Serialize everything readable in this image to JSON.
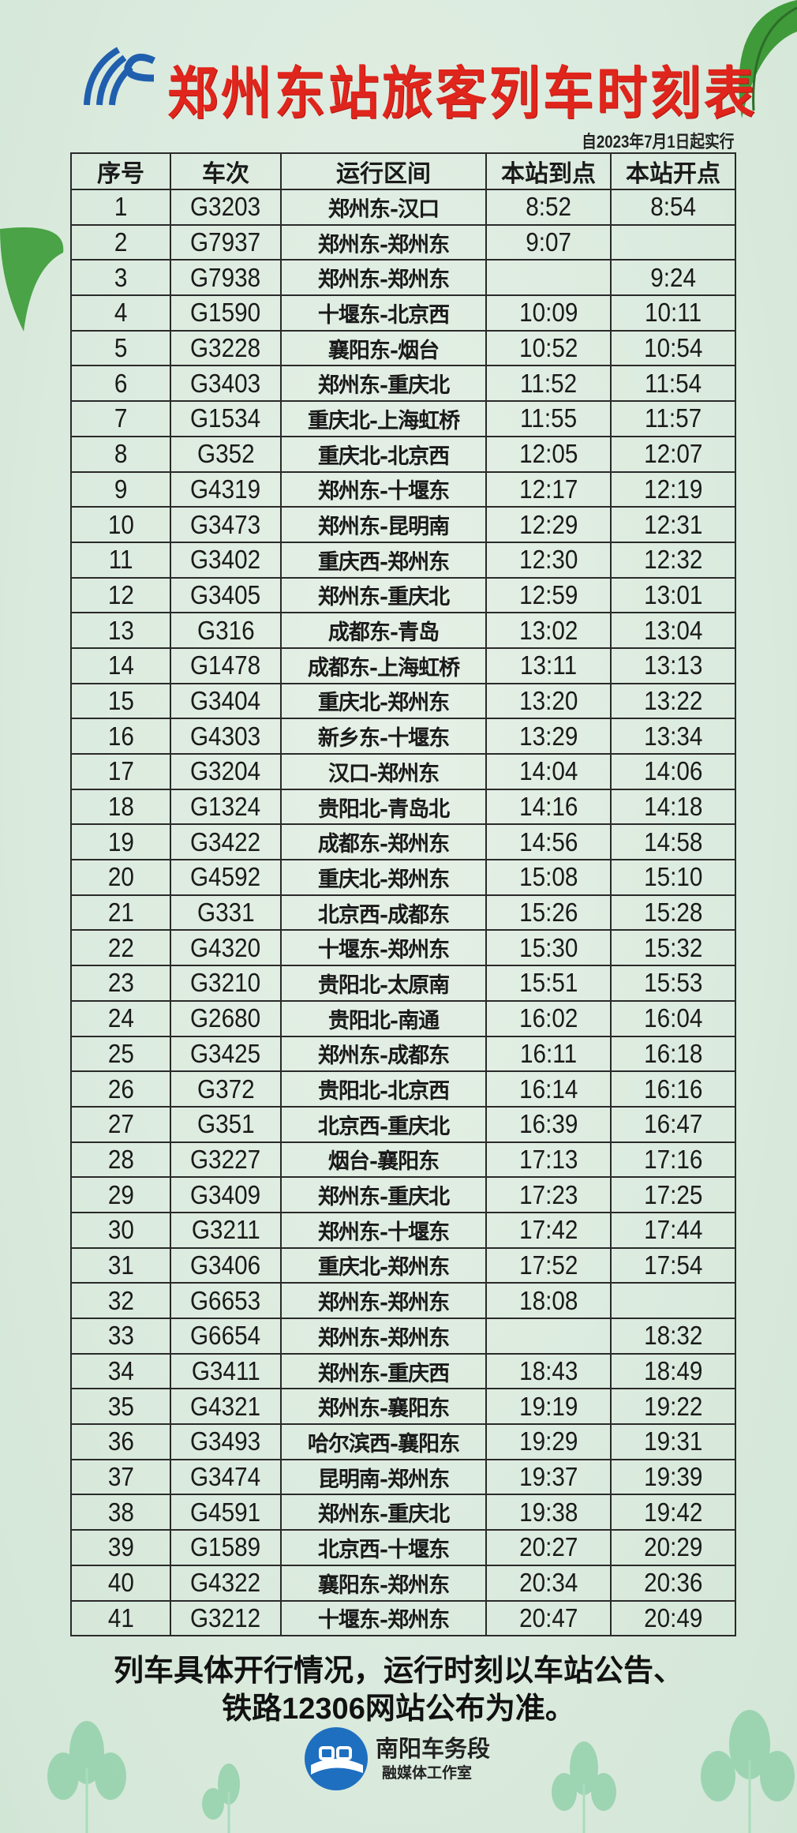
{
  "header": {
    "title": "郑州东站旅客列车时刻表",
    "subtitle": "自2023年7月1日起实行",
    "logo_icon": "china-railway-logo",
    "title_color": "#e0251c"
  },
  "table": {
    "columns": [
      "序号",
      "车次",
      "运行区间",
      "本站到点",
      "本站开点"
    ],
    "rows": [
      [
        "1",
        "G3203",
        "郑州东-汉口",
        "8:52",
        "8:54"
      ],
      [
        "2",
        "G7937",
        "郑州东-郑州东",
        "9:07",
        ""
      ],
      [
        "3",
        "G7938",
        "郑州东-郑州东",
        "",
        "9:24"
      ],
      [
        "4",
        "G1590",
        "十堰东-北京西",
        "10:09",
        "10:11"
      ],
      [
        "5",
        "G3228",
        "襄阳东-烟台",
        "10:52",
        "10:54"
      ],
      [
        "6",
        "G3403",
        "郑州东-重庆北",
        "11:52",
        "11:54"
      ],
      [
        "7",
        "G1534",
        "重庆北-上海虹桥",
        "11:55",
        "11:57"
      ],
      [
        "8",
        "G352",
        "重庆北-北京西",
        "12:05",
        "12:07"
      ],
      [
        "9",
        "G4319",
        "郑州东-十堰东",
        "12:17",
        "12:19"
      ],
      [
        "10",
        "G3473",
        "郑州东-昆明南",
        "12:29",
        "12:31"
      ],
      [
        "11",
        "G3402",
        "重庆西-郑州东",
        "12:30",
        "12:32"
      ],
      [
        "12",
        "G3405",
        "郑州东-重庆北",
        "12:59",
        "13:01"
      ],
      [
        "13",
        "G316",
        "成都东-青岛",
        "13:02",
        "13:04"
      ],
      [
        "14",
        "G1478",
        "成都东-上海虹桥",
        "13:11",
        "13:13"
      ],
      [
        "15",
        "G3404",
        "重庆北-郑州东",
        "13:20",
        "13:22"
      ],
      [
        "16",
        "G4303",
        "新乡东-十堰东",
        "13:29",
        "13:34"
      ],
      [
        "17",
        "G3204",
        "汉口-郑州东",
        "14:04",
        "14:06"
      ],
      [
        "18",
        "G1324",
        "贵阳北-青岛北",
        "14:16",
        "14:18"
      ],
      [
        "19",
        "G3422",
        "成都东-郑州东",
        "14:56",
        "14:58"
      ],
      [
        "20",
        "G4592",
        "重庆北-郑州东",
        "15:08",
        "15:10"
      ],
      [
        "21",
        "G331",
        "北京西-成都东",
        "15:26",
        "15:28"
      ],
      [
        "22",
        "G4320",
        "十堰东-郑州东",
        "15:30",
        "15:32"
      ],
      [
        "23",
        "G3210",
        "贵阳北-太原南",
        "15:51",
        "15:53"
      ],
      [
        "24",
        "G2680",
        "贵阳北-南通",
        "16:02",
        "16:04"
      ],
      [
        "25",
        "G3425",
        "郑州东-成都东",
        "16:11",
        "16:18"
      ],
      [
        "26",
        "G372",
        "贵阳北-北京西",
        "16:14",
        "16:16"
      ],
      [
        "27",
        "G351",
        "北京西-重庆北",
        "16:39",
        "16:47"
      ],
      [
        "28",
        "G3227",
        "烟台-襄阳东",
        "17:13",
        "17:16"
      ],
      [
        "29",
        "G3409",
        "郑州东-重庆北",
        "17:23",
        "17:25"
      ],
      [
        "30",
        "G3211",
        "郑州东-十堰东",
        "17:42",
        "17:44"
      ],
      [
        "31",
        "G3406",
        "重庆北-郑州东",
        "17:52",
        "17:54"
      ],
      [
        "32",
        "G6653",
        "郑州东-郑州东",
        "18:08",
        ""
      ],
      [
        "33",
        "G6654",
        "郑州东-郑州东",
        "",
        "18:32"
      ],
      [
        "34",
        "G3411",
        "郑州东-重庆西",
        "18:43",
        "18:49"
      ],
      [
        "35",
        "G4321",
        "郑州东-襄阳东",
        "19:19",
        "19:22"
      ],
      [
        "36",
        "G3493",
        "哈尔滨西-襄阳东",
        "19:29",
        "19:31"
      ],
      [
        "37",
        "G3474",
        "昆明南-郑州东",
        "19:37",
        "19:39"
      ],
      [
        "38",
        "G4591",
        "郑州东-重庆北",
        "19:38",
        "19:42"
      ],
      [
        "39",
        "G1589",
        "北京西-十堰东",
        "20:27",
        "20:29"
      ],
      [
        "40",
        "G4322",
        "襄阳东-郑州东",
        "20:34",
        "20:36"
      ],
      [
        "41",
        "G3212",
        "十堰东-郑州东",
        "20:47",
        "20:49"
      ]
    ]
  },
  "footer": {
    "note_line1": "列车具体开行情况，运行时刻以车站公告、",
    "note_line2": "铁路12306网站公布为准。",
    "org_name": "南阳车务段",
    "org_sub": "融媒体工作室",
    "org_logo_icon": "nanyang-depot-logo",
    "org_logo_color": "#1e6fc0"
  }
}
